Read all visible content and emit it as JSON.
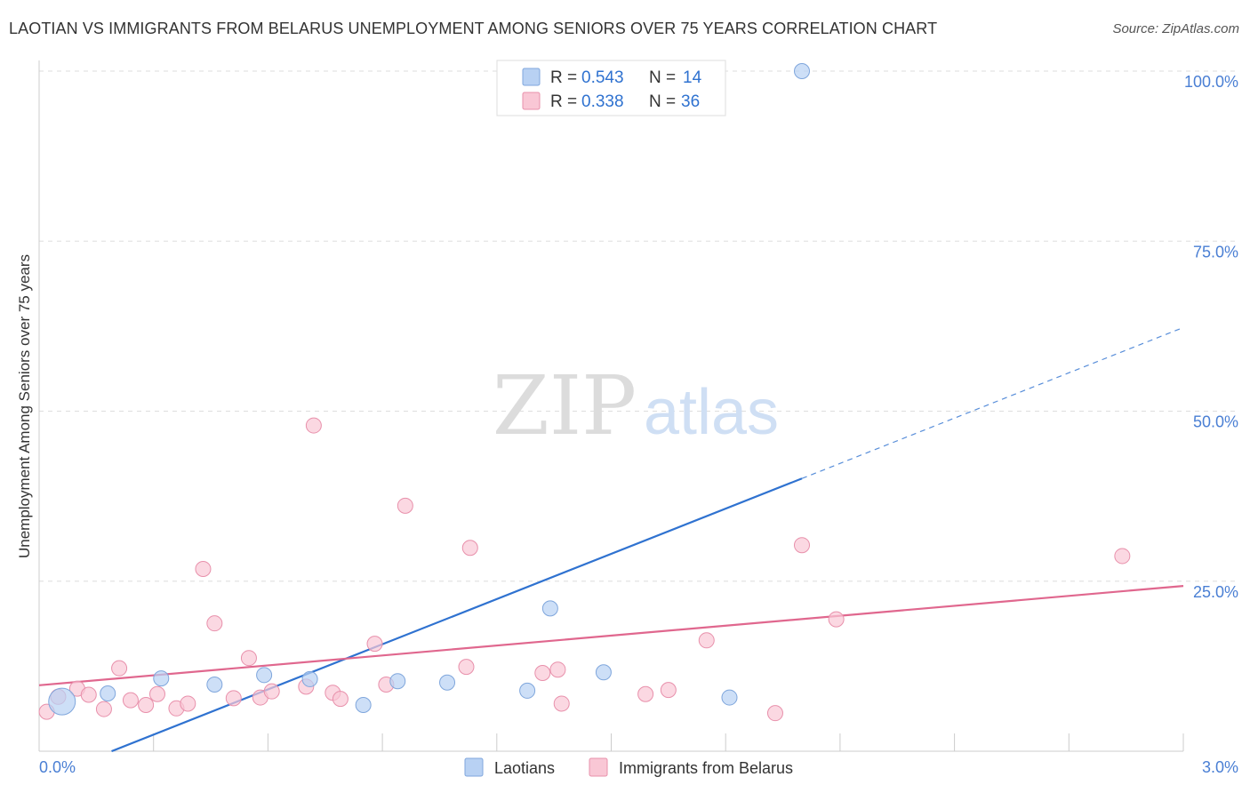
{
  "chart_data": {
    "type": "scatter",
    "title": "LAOTIAN VS IMMIGRANTS FROM BELARUS UNEMPLOYMENT AMONG SENIORS OVER 75 YEARS CORRELATION CHART",
    "source": "Source: ZipAtlas.com",
    "xlabel": "",
    "ylabel": "Unemployment Among Seniors over 75 years",
    "xlim": [
      0,
      3.0
    ],
    "ylim": [
      0,
      100
    ],
    "x_tick_labels": {
      "left": "0.0%",
      "right": "3.0%"
    },
    "y_ticks": [
      {
        "value": 100,
        "label": "100.0%"
      },
      {
        "value": 75,
        "label": "75.0%"
      },
      {
        "value": 50,
        "label": "50.0%"
      },
      {
        "value": 25,
        "label": "25.0%"
      }
    ],
    "watermark": {
      "part1": "ZIP",
      "part2": "atlas"
    },
    "legend_top": [
      {
        "r_label": "R = ",
        "r_value": "0.543",
        "n_label": "N = ",
        "n_value": "14"
      },
      {
        "r_label": "R = ",
        "r_value": "0.338",
        "n_label": "N = ",
        "n_value": "36"
      }
    ],
    "series": [
      {
        "name": "Laotians",
        "fill": "#b8d1f3",
        "stroke": "#7fa6dc",
        "line_color": "#2f72d0",
        "trend": {
          "x0": 0.19,
          "y0": 0,
          "x1": 2.0,
          "y1": 40.1,
          "x_dash_end": 3.0,
          "y_dash_end": 62.3
        },
        "points": [
          {
            "x": 0.06,
            "y": 7.3,
            "big": true
          },
          {
            "x": 0.18,
            "y": 8.5
          },
          {
            "x": 0.32,
            "y": 10.7
          },
          {
            "x": 0.46,
            "y": 9.8
          },
          {
            "x": 0.59,
            "y": 11.2
          },
          {
            "x": 0.71,
            "y": 10.6
          },
          {
            "x": 0.85,
            "y": 6.8
          },
          {
            "x": 0.94,
            "y": 10.3
          },
          {
            "x": 1.07,
            "y": 10.1
          },
          {
            "x": 1.28,
            "y": 8.9
          },
          {
            "x": 1.34,
            "y": 21.0
          },
          {
            "x": 1.48,
            "y": 11.6
          },
          {
            "x": 1.81,
            "y": 7.9
          },
          {
            "x": 2.0,
            "y": 100.0
          }
        ]
      },
      {
        "name": "Immigrants from Belarus",
        "fill": "#f9c7d5",
        "stroke": "#e890ab",
        "line_color": "#e0678e",
        "trend": {
          "x0": 0,
          "y0": 9.7,
          "x1": 3.0,
          "y1": 24.3
        },
        "points": [
          {
            "x": 0.02,
            "y": 5.8
          },
          {
            "x": 0.05,
            "y": 8.0
          },
          {
            "x": 0.1,
            "y": 9.2
          },
          {
            "x": 0.13,
            "y": 8.3
          },
          {
            "x": 0.17,
            "y": 6.2
          },
          {
            "x": 0.21,
            "y": 12.2
          },
          {
            "x": 0.24,
            "y": 7.5
          },
          {
            "x": 0.28,
            "y": 6.8
          },
          {
            "x": 0.31,
            "y": 8.4
          },
          {
            "x": 0.36,
            "y": 6.3
          },
          {
            "x": 0.39,
            "y": 7.0
          },
          {
            "x": 0.43,
            "y": 26.8
          },
          {
            "x": 0.46,
            "y": 18.8
          },
          {
            "x": 0.51,
            "y": 7.8
          },
          {
            "x": 0.55,
            "y": 13.7
          },
          {
            "x": 0.58,
            "y": 7.9
          },
          {
            "x": 0.61,
            "y": 8.8
          },
          {
            "x": 0.7,
            "y": 9.5
          },
          {
            "x": 0.72,
            "y": 47.9
          },
          {
            "x": 0.77,
            "y": 8.6
          },
          {
            "x": 0.79,
            "y": 7.7
          },
          {
            "x": 0.88,
            "y": 15.8
          },
          {
            "x": 0.91,
            "y": 9.8
          },
          {
            "x": 0.96,
            "y": 36.1
          },
          {
            "x": 1.12,
            "y": 12.4
          },
          {
            "x": 1.13,
            "y": 29.9
          },
          {
            "x": 1.32,
            "y": 11.5
          },
          {
            "x": 1.37,
            "y": 7.0
          },
          {
            "x": 1.36,
            "y": 12.0
          },
          {
            "x": 1.59,
            "y": 8.4
          },
          {
            "x": 1.65,
            "y": 9.0
          },
          {
            "x": 1.75,
            "y": 16.3
          },
          {
            "x": 1.93,
            "y": 5.6
          },
          {
            "x": 2.0,
            "y": 30.3
          },
          {
            "x": 2.09,
            "y": 19.4
          },
          {
            "x": 2.84,
            "y": 28.7
          }
        ]
      }
    ]
  }
}
